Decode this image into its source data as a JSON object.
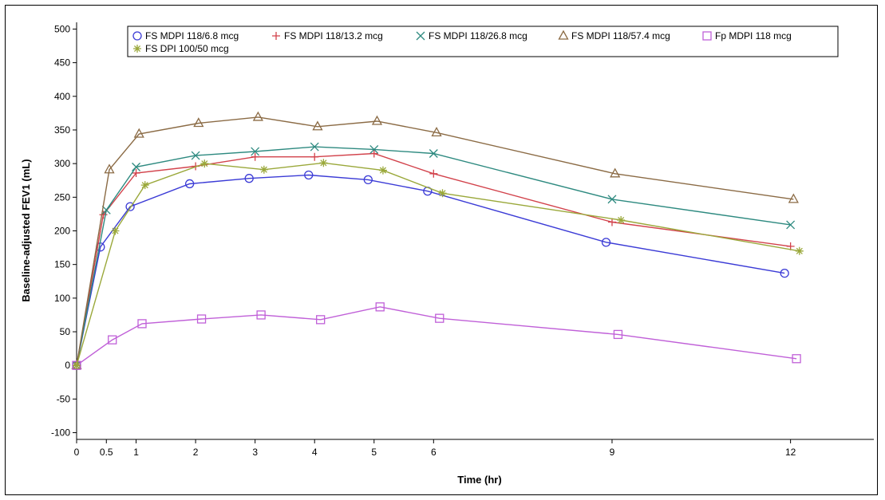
{
  "chart_data": {
    "type": "line",
    "title": "",
    "xlabel": "Time (hr)",
    "ylabel": "Baseline-adjusted FEV1 (mL)",
    "xlim": [
      0,
      13.4
    ],
    "ylim": [
      -110,
      510
    ],
    "x_ticks": [
      0,
      0.5,
      1,
      2,
      3,
      4,
      5,
      6,
      9,
      12
    ],
    "x_tick_labels": [
      "0",
      "0.5",
      "1",
      "2",
      "3",
      "4",
      "5",
      "6",
      "9",
      "12"
    ],
    "y_ticks": [
      -100,
      -50,
      0,
      50,
      100,
      150,
      200,
      250,
      300,
      350,
      400,
      450,
      500
    ],
    "y_tick_labels": [
      "-100",
      "-50",
      "0",
      "50",
      "100",
      "150",
      "200",
      "250",
      "300",
      "350",
      "400",
      "450",
      "500"
    ],
    "grid": false,
    "legend_position": "top",
    "series": [
      {
        "name": "FS MDPI 118/6.8 mcg",
        "color": "#3b3bd6",
        "marker": "circle",
        "x": [
          0,
          0.4,
          0.9,
          1.9,
          2.9,
          3.9,
          4.9,
          5.9,
          8.9,
          11.9
        ],
        "y": [
          0,
          176,
          236,
          270,
          278,
          283,
          276,
          259,
          183,
          137
        ]
      },
      {
        "name": "FS MDPI 118/13.2 mcg",
        "color": "#d2424b",
        "marker": "plus",
        "x": [
          0,
          0.45,
          1.0,
          2.0,
          3.0,
          4.0,
          5.0,
          6.0,
          9.0,
          12.0
        ],
        "y": [
          0,
          224,
          286,
          296,
          310,
          310,
          315,
          285,
          213,
          177
        ]
      },
      {
        "name": "FS MDPI 118/26.8 mcg",
        "color": "#2e8a80",
        "marker": "x",
        "x": [
          0,
          0.5,
          1.0,
          2.0,
          3.0,
          4.0,
          5.0,
          6.0,
          9.0,
          12.0
        ],
        "y": [
          0,
          231,
          295,
          312,
          318,
          325,
          321,
          315,
          247,
          209
        ]
      },
      {
        "name": "FS MDPI 118/57.4 mcg",
        "color": "#8b6b45",
        "marker": "triangle",
        "x": [
          0,
          0.55,
          1.05,
          2.05,
          3.05,
          4.05,
          5.05,
          6.05,
          9.05,
          12.05
        ],
        "y": [
          0,
          291,
          344,
          360,
          369,
          355,
          363,
          346,
          285,
          247
        ]
      },
      {
        "name": "Fp MDPI 118 mcg",
        "color": "#c060d8",
        "marker": "square",
        "x": [
          0,
          0.6,
          1.1,
          2.1,
          3.1,
          4.1,
          5.1,
          6.1,
          9.1,
          12.1
        ],
        "y": [
          0,
          38,
          62,
          69,
          75,
          68,
          87,
          70,
          46,
          10
        ]
      },
      {
        "name": "FS DPI 100/50 mcg",
        "color": "#9aa83a",
        "marker": "star",
        "x": [
          0,
          0.65,
          1.15,
          2.15,
          3.15,
          4.15,
          5.15,
          6.15,
          9.15,
          12.15
        ],
        "y": [
          0,
          200,
          268,
          300,
          291,
          301,
          290,
          256,
          216,
          170
        ]
      }
    ]
  }
}
